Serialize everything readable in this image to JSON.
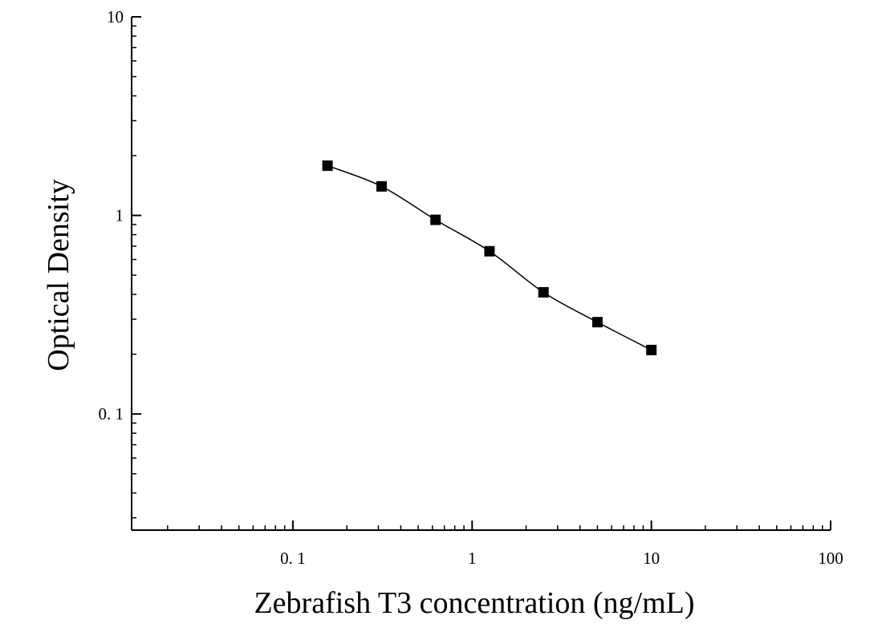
{
  "chart_data": {
    "type": "scatter",
    "title": "",
    "xlabel": "Zebrafish T3 concentration (ng/mL)",
    "ylabel": "Optical Density",
    "xscale": "log",
    "yscale": "log",
    "xlim": [
      0.0126,
      100
    ],
    "ylim": [
      0.026,
      10
    ],
    "x_ticks": [
      {
        "value": 0.1,
        "label": "0. 1"
      },
      {
        "value": 1,
        "label": "1"
      },
      {
        "value": 10,
        "label": "10"
      },
      {
        "value": 100,
        "label": "100"
      }
    ],
    "y_ticks": [
      {
        "value": 0.1,
        "label": "0. 1"
      },
      {
        "value": 1,
        "label": "1"
      },
      {
        "value": 10,
        "label": "10"
      }
    ],
    "grid": false,
    "legend": "none",
    "series": [
      {
        "marker": "square",
        "color": "#000000",
        "points": [
          {
            "x": 0.156,
            "y": 1.78
          },
          {
            "x": 0.3125,
            "y": 1.4
          },
          {
            "x": 0.625,
            "y": 0.95
          },
          {
            "x": 1.25,
            "y": 0.66
          },
          {
            "x": 2.5,
            "y": 0.41
          },
          {
            "x": 5,
            "y": 0.29
          },
          {
            "x": 10,
            "y": 0.21
          }
        ],
        "fit_curve": "sigmoidal"
      }
    ]
  }
}
